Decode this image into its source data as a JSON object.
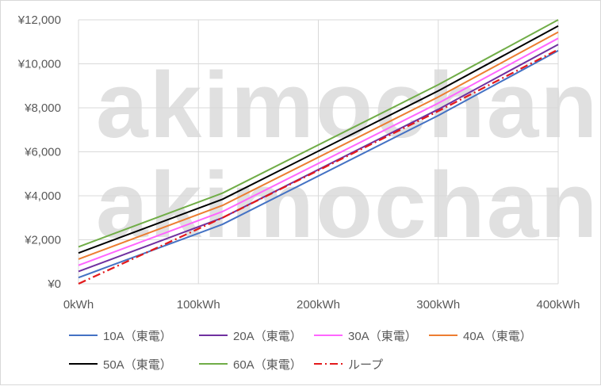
{
  "watermark": {
    "line1": "akimochan",
    "line2": "akimochan"
  },
  "chart_data": {
    "type": "line",
    "x": [
      0,
      120,
      300,
      400
    ],
    "x_ticks": [
      0,
      100,
      200,
      300,
      400
    ],
    "x_tick_labels": [
      "0kWh",
      "100kWh",
      "200kWh",
      "300kWh",
      "400kWh"
    ],
    "y_ticks": [
      0,
      2000,
      4000,
      6000,
      8000,
      10000,
      12000
    ],
    "y_tick_labels": [
      "¥0",
      "¥2,000",
      "¥4,000",
      "¥6,000",
      "¥8,000",
      "¥10,000",
      "¥12,000"
    ],
    "xlim": [
      0,
      400
    ],
    "ylim": [
      0,
      12000
    ],
    "grid": true,
    "legend_position": "bottom",
    "series": [
      {
        "name": "10A（東電）",
        "color": "#4472c4",
        "dash": "solid",
        "values": [
          280,
          2700,
          7650,
          10600
        ]
      },
      {
        "name": "20A（東電）",
        "color": "#7030a0",
        "dash": "solid",
        "values": [
          560,
          3000,
          7930,
          10880
        ]
      },
      {
        "name": "30A（東電）",
        "color": "#ff66ff",
        "dash": "solid",
        "values": [
          840,
          3280,
          8210,
          11160
        ]
      },
      {
        "name": "40A（東電）",
        "color": "#ed7d31",
        "dash": "solid",
        "values": [
          1120,
          3560,
          8490,
          11440
        ]
      },
      {
        "name": "50A（東電）",
        "color": "#000000",
        "dash": "solid",
        "values": [
          1400,
          3840,
          8770,
          11720
        ]
      },
      {
        "name": "60A（東電）",
        "color": "#70ad47",
        "dash": "solid",
        "values": [
          1680,
          4120,
          9050,
          12000
        ]
      },
      {
        "name": "ループ",
        "color": "#e31a1c",
        "dash": "dashdot",
        "values": [
          0,
          3000,
          7850,
          10650
        ]
      }
    ]
  }
}
